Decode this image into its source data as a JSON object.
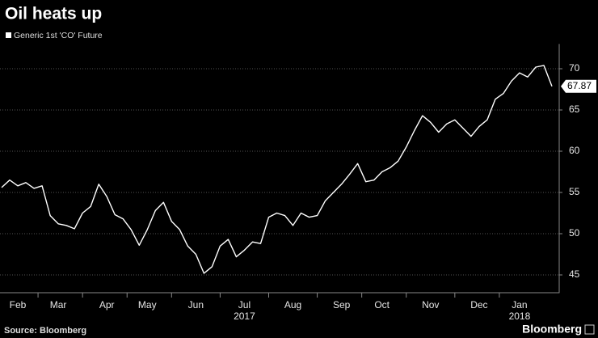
{
  "chart_data": {
    "type": "line",
    "title": "Oil heats up",
    "categories": [
      null,
      null,
      "Feb",
      null,
      null,
      null,
      null,
      "Mar",
      null,
      null,
      null,
      null,
      null,
      "Apr",
      null,
      null,
      null,
      null,
      "May",
      null,
      null,
      null,
      null,
      null,
      "Jun",
      null,
      null,
      null,
      null,
      null,
      "Jul",
      null,
      null,
      null,
      null,
      null,
      "Aug",
      null,
      null,
      null,
      null,
      null,
      "Sep",
      null,
      null,
      null,
      null,
      "Oct",
      null,
      null,
      null,
      null,
      null,
      "Nov",
      null,
      null,
      null,
      null,
      null,
      "Dec",
      null,
      null,
      null,
      null,
      "Jan",
      null,
      null,
      null,
      null
    ],
    "category_years": [
      null,
      null,
      null,
      null,
      null,
      null,
      null,
      null,
      null,
      null,
      null,
      null,
      null,
      null,
      null,
      null,
      null,
      null,
      null,
      null,
      null,
      null,
      null,
      null,
      null,
      null,
      null,
      null,
      null,
      null,
      "2017",
      null,
      null,
      null,
      null,
      null,
      null,
      null,
      null,
      null,
      null,
      null,
      null,
      null,
      null,
      null,
      null,
      null,
      null,
      null,
      null,
      null,
      null,
      null,
      null,
      null,
      null,
      null,
      null,
      null,
      null,
      null,
      null,
      null,
      "2018",
      null,
      null,
      null,
      null
    ],
    "series": [
      {
        "name": "Generic 1st 'CO' Future",
        "color": "#ffffff",
        "values": [
          55.6,
          56.5,
          55.8,
          56.2,
          55.5,
          55.8,
          52.2,
          51.2,
          51,
          50.6,
          52.5,
          53.3,
          56,
          54.5,
          52.3,
          51.8,
          50.5,
          48.6,
          50.5,
          52.8,
          53.8,
          51.5,
          50.5,
          48.5,
          47.5,
          45.2,
          46,
          48.5,
          49.3,
          47.2,
          48,
          49,
          48.8,
          52,
          52.5,
          52.2,
          51,
          52.5,
          52,
          52.2,
          54,
          55,
          56,
          57.2,
          58.5,
          56.3,
          56.5,
          57.5,
          58,
          58.8,
          60.5,
          62.5,
          64.3,
          63.5,
          62.3,
          63.3,
          63.8,
          62.8,
          61.8,
          63,
          63.8,
          66.3,
          67,
          68.5,
          69.5,
          69,
          70.2,
          70.4,
          67.87
        ]
      }
    ],
    "ylim": [
      43,
      73
    ],
    "yticks": [
      45,
      50,
      55,
      60,
      65,
      70
    ],
    "grid": true,
    "y_axis_side": "right",
    "source": "Source: Bloomberg",
    "logo": "Bloomberg"
  }
}
